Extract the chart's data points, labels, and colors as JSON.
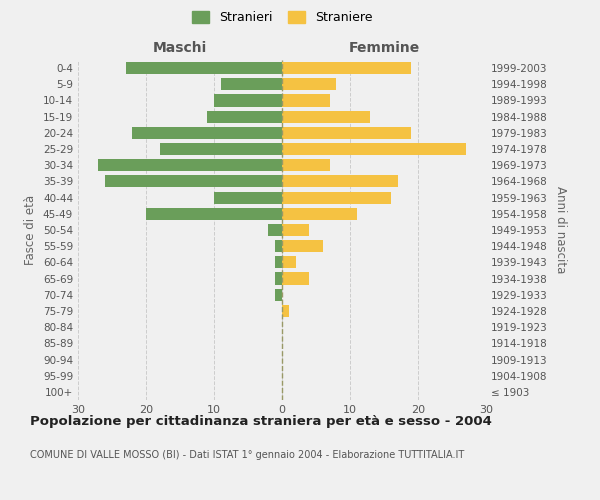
{
  "age_groups": [
    "100+",
    "95-99",
    "90-94",
    "85-89",
    "80-84",
    "75-79",
    "70-74",
    "65-69",
    "60-64",
    "55-59",
    "50-54",
    "45-49",
    "40-44",
    "35-39",
    "30-34",
    "25-29",
    "20-24",
    "15-19",
    "10-14",
    "5-9",
    "0-4"
  ],
  "birth_years": [
    "≤ 1903",
    "1904-1908",
    "1909-1913",
    "1914-1918",
    "1919-1923",
    "1924-1928",
    "1929-1933",
    "1934-1938",
    "1939-1943",
    "1944-1948",
    "1949-1953",
    "1954-1958",
    "1959-1963",
    "1964-1968",
    "1969-1973",
    "1974-1978",
    "1979-1983",
    "1984-1988",
    "1989-1993",
    "1994-1998",
    "1999-2003"
  ],
  "maschi": [
    0,
    0,
    0,
    0,
    0,
    0,
    1,
    1,
    1,
    1,
    2,
    20,
    10,
    26,
    27,
    18,
    22,
    11,
    10,
    9,
    23
  ],
  "femmine": [
    0,
    0,
    0,
    0,
    0,
    1,
    0,
    4,
    2,
    6,
    4,
    11,
    16,
    17,
    7,
    27,
    19,
    13,
    7,
    8,
    19
  ],
  "maschi_color": "#6a9e5a",
  "femmine_color": "#f5c242",
  "background_color": "#f0f0f0",
  "grid_color": "#cccccc",
  "title": "Popolazione per cittadinanza straniera per età e sesso - 2004",
  "subtitle": "COMUNE DI VALLE MOSSO (BI) - Dati ISTAT 1° gennaio 2004 - Elaborazione TUTTITALIA.IT",
  "ylabel_left": "Fasce di età",
  "ylabel_right": "Anni di nascita",
  "xlabel_maschi": "Maschi",
  "xlabel_femmine": "Femmine",
  "legend_stranieri": "Stranieri",
  "legend_straniere": "Straniere",
  "xlim": 30,
  "bar_height": 0.75
}
